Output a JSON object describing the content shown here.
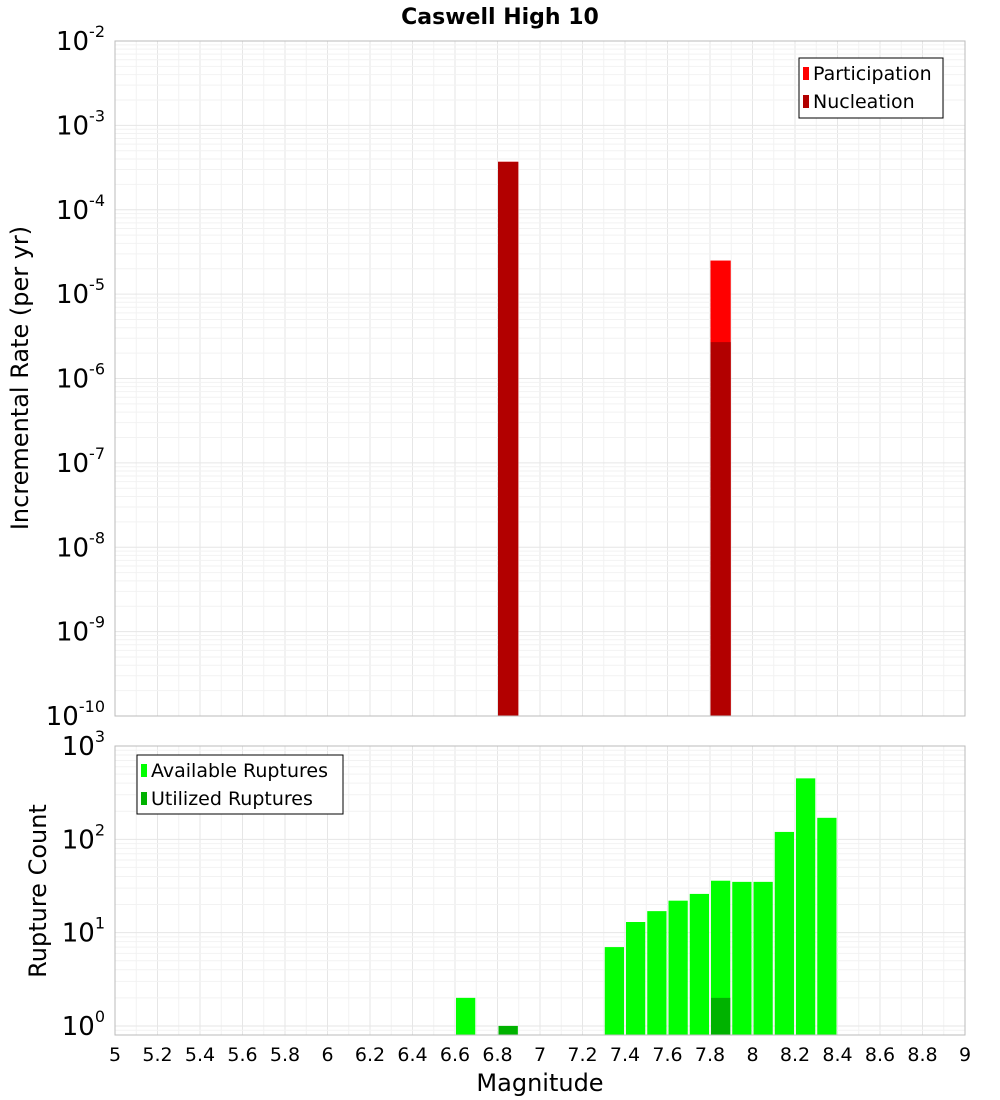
{
  "title": "Caswell High 10",
  "colors": {
    "participation": "#ff0000",
    "nucleation": "#b20000",
    "available": "#00ff00",
    "utilized": "#00b200",
    "grid_major": "#e6e6e6",
    "grid_minor": "#f2f2f2",
    "frame": "#bbbbbb"
  },
  "chart_data": [
    {
      "type": "bar",
      "name": "rate-panel",
      "scale": "log",
      "ylabel": "Incremental Rate (per yr)",
      "ylim": [
        1e-10,
        0.01
      ],
      "ytick_bases": [
        "10",
        "10",
        "10",
        "10",
        "10",
        "10",
        "10",
        "10",
        "10"
      ],
      "ytick_exponents": [
        "-10",
        "-9",
        "-8",
        "-7",
        "-6",
        "-5",
        "-4",
        "-3",
        "-2"
      ],
      "xlim": [
        5,
        9
      ],
      "bin_width": 0.1,
      "legend": [
        "Participation",
        "Nucleation"
      ],
      "legend_position": "top-right",
      "series": [
        {
          "name": "Participation",
          "x": [
            6.85,
            7.85
          ],
          "values": [
            0.00037,
            2.5e-05
          ]
        },
        {
          "name": "Nucleation",
          "x": [
            6.85,
            7.85
          ],
          "values": [
            0.00037,
            2.7e-06
          ]
        }
      ]
    },
    {
      "type": "bar",
      "name": "count-panel",
      "scale": "log",
      "ylabel": "Rupture Count",
      "xlabel": "Magnitude",
      "ylim": [
        0.8,
        1000
      ],
      "ytick_bases": [
        "10",
        "10",
        "10",
        "10"
      ],
      "ytick_exponents": [
        "0",
        "1",
        "2",
        "3"
      ],
      "xlim": [
        5,
        9
      ],
      "xticks": [
        "5",
        "5.2",
        "5.4",
        "5.6",
        "5.8",
        "6",
        "6.2",
        "6.4",
        "6.6",
        "6.8",
        "7",
        "7.2",
        "7.4",
        "7.6",
        "7.8",
        "8",
        "8.2",
        "8.4",
        "8.6",
        "8.8",
        "9"
      ],
      "bin_width": 0.1,
      "legend": [
        "Available Ruptures",
        "Utilized Ruptures"
      ],
      "legend_position": "top-left",
      "series": [
        {
          "name": "Available Ruptures",
          "x": [
            6.65,
            6.85,
            7.35,
            7.45,
            7.55,
            7.65,
            7.75,
            7.85,
            7.95,
            8.05,
            8.15,
            8.25,
            8.35
          ],
          "values": [
            2,
            1,
            7,
            13,
            17,
            22,
            26,
            36,
            35,
            35,
            120,
            450,
            170
          ]
        },
        {
          "name": "Utilized Ruptures",
          "x": [
            6.85,
            7.85
          ],
          "values": [
            1,
            2
          ]
        }
      ]
    }
  ]
}
